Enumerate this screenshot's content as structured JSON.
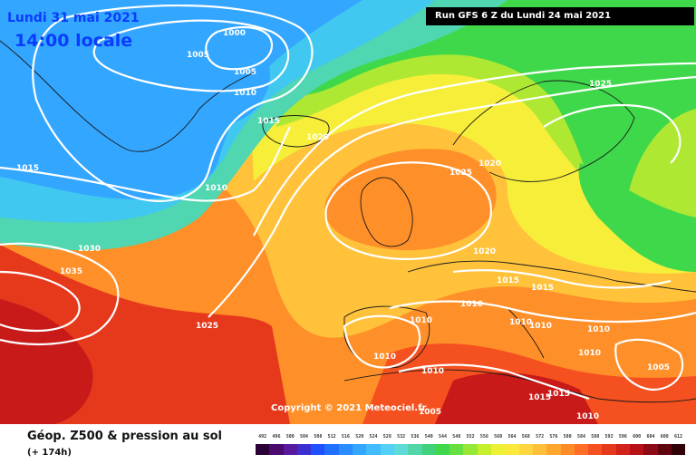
{
  "header": {
    "date": "Lundi 31 mai 2021",
    "local_time": "14:00 locale",
    "run_info": "Run GFS 6 Z du Lundi 24 mai 2021"
  },
  "copyright": "Copyright © 2021 Meteociel.fr",
  "legend": {
    "title": "Géop. Z500 & pression au sol",
    "subtitle": "(+ 174h)",
    "scale_values": [
      "492",
      "496",
      "500",
      "504",
      "508",
      "512",
      "516",
      "520",
      "524",
      "528",
      "532",
      "536",
      "540",
      "544",
      "548",
      "552",
      "556",
      "560",
      "564",
      "568",
      "572",
      "576",
      "580",
      "584",
      "588",
      "592",
      "596",
      "600",
      "604",
      "608",
      "612"
    ],
    "scale_colors": [
      "#2b0036",
      "#4a0a6e",
      "#5a1aa0",
      "#3c2fd0",
      "#1f4fff",
      "#2070ff",
      "#2a8dff",
      "#33a6ff",
      "#40bcff",
      "#55d0f5",
      "#5edbd8",
      "#52d6a8",
      "#3fd27a",
      "#3ed84a",
      "#66e040",
      "#95e836",
      "#c6ef2e",
      "#ecf233",
      "#fbe93c",
      "#ffd640",
      "#ffbf38",
      "#ffa62e",
      "#ff8a28",
      "#ff6e24",
      "#f5501f",
      "#e6391c",
      "#d3221a",
      "#b81118",
      "#8e0a14",
      "#5e050e",
      "#300007"
    ]
  },
  "isobars": [
    "1000",
    "1005",
    "1005",
    "1010",
    "1015",
    "1020",
    "1015",
    "1010",
    "1025",
    "1020",
    "1025",
    "1030",
    "1035",
    "1025",
    "1020",
    "1015",
    "1015",
    "1010",
    "1010",
    "1010",
    "1010",
    "1010",
    "1010",
    "1010",
    "1005",
    "1010",
    "1015",
    "1015",
    "1010",
    "1005"
  ],
  "map_colors": {
    "ocean_blue": "#33a6ff",
    "cyan": "#40c8f0",
    "teal": "#50d6b0",
    "green": "#3ed84a",
    "lime": "#aee832",
    "yellow": "#f7ee3a",
    "light_orange": "#ffc23a",
    "orange": "#ff8f28",
    "red_orange": "#f5501f",
    "red": "#e6391c",
    "deep_red": "#c81a18"
  }
}
